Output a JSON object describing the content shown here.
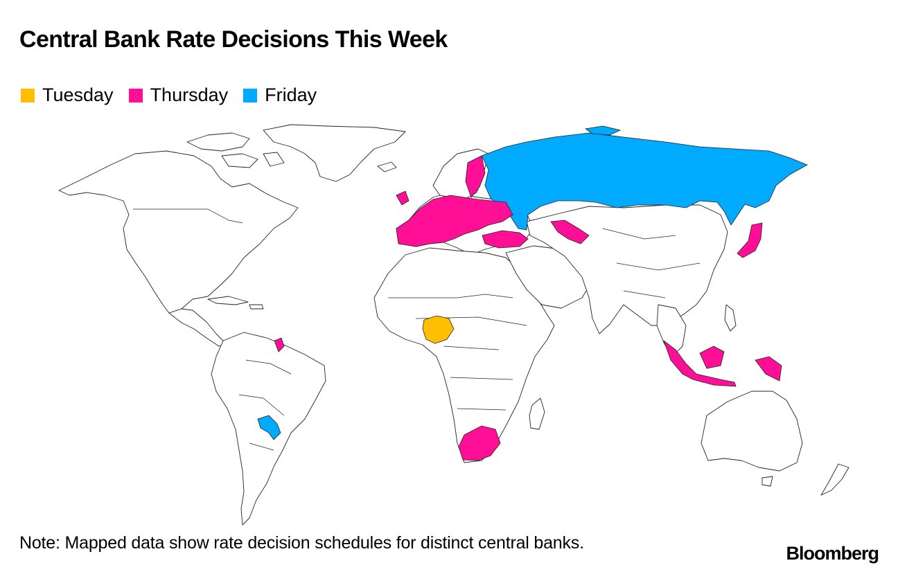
{
  "title": "Central Bank Rate Decisions This Week",
  "legend": [
    {
      "label": "Tuesday",
      "color": "#FFBF00"
    },
    {
      "label": "Thursday",
      "color": "#FF0F96"
    },
    {
      "label": "Friday",
      "color": "#00AAFF"
    }
  ],
  "note": "Note: Mapped data show rate decision schedules for distinct central banks.",
  "logo": "Bloomberg",
  "regions": {
    "tuesday": [
      "Nigeria"
    ],
    "thursday": [
      "Norway",
      "United Kingdom",
      "Europe",
      "Turkey",
      "Uzbekistan",
      "Japan",
      "Indonesia",
      "South Africa",
      "Suriname"
    ],
    "friday": [
      "Russia",
      "Paraguay"
    ]
  }
}
